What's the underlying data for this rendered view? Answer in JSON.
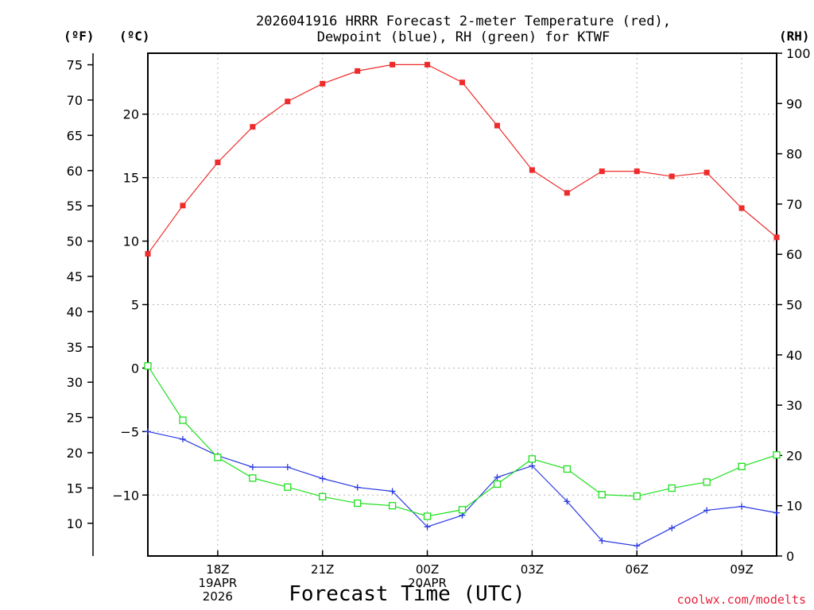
{
  "title": {
    "line1": "2026041916 HRRR Forecast 2-meter Temperature (red),",
    "line2": "Dewpoint (blue), RH (green) for KTWF"
  },
  "axis_units": {
    "fahrenheit": "(ºF)",
    "celsius": "(ºC)",
    "rh": "(RH)"
  },
  "xlabel": "Forecast Time (UTC)",
  "credit": "coolwx.com/modelts",
  "colors": {
    "temperature": "#ee2a2a",
    "dewpoint": "#2a3ae0",
    "rh": "#1ee01e",
    "grid": "#b4b4b4"
  },
  "chart_data": {
    "type": "line",
    "x_hours": [
      16,
      17,
      18,
      19,
      20,
      21,
      22,
      23,
      24,
      25,
      26,
      27,
      28,
      29,
      30,
      31,
      32,
      33,
      34
    ],
    "xlim": [
      16,
      34
    ],
    "x_ticks": [
      {
        "hour": 18,
        "lines": [
          "18Z",
          "19APR",
          "2026"
        ]
      },
      {
        "hour": 21,
        "lines": [
          "21Z"
        ]
      },
      {
        "hour": 24,
        "lines": [
          "00Z",
          "20APR"
        ]
      },
      {
        "hour": 27,
        "lines": [
          "03Z"
        ]
      },
      {
        "hour": 30,
        "lines": [
          "06Z"
        ]
      },
      {
        "hour": 33,
        "lines": [
          "09Z"
        ]
      }
    ],
    "celsius_axis": {
      "lim": [
        -14.8,
        24.8
      ],
      "ticks": [
        -10,
        -5,
        0,
        5,
        10,
        15,
        20
      ]
    },
    "fahrenheit_axis": {
      "ticks": [
        10,
        15,
        20,
        25,
        30,
        35,
        40,
        45,
        50,
        55,
        60,
        65,
        70,
        75
      ]
    },
    "rh_axis": {
      "lim": [
        0,
        100
      ],
      "ticks": [
        0,
        10,
        20,
        30,
        40,
        50,
        60,
        70,
        80,
        90,
        100
      ]
    },
    "series": [
      {
        "name": "Temperature",
        "axis": "celsius",
        "marker": "square-filled",
        "values": [
          9.0,
          12.8,
          16.2,
          19.0,
          21.0,
          22.4,
          23.4,
          23.9,
          23.9,
          22.5,
          19.1,
          15.6,
          13.8,
          15.5,
          15.5,
          15.1,
          15.4,
          12.6,
          10.3
        ]
      },
      {
        "name": "Dewpoint",
        "axis": "celsius",
        "marker": "plus",
        "values": [
          -5.0,
          -5.6,
          -6.9,
          -7.8,
          -7.8,
          -8.7,
          -9.4,
          -9.7,
          -12.5,
          -11.6,
          -8.6,
          -7.7,
          -10.5,
          -13.6,
          -14.0,
          -12.6,
          -11.2,
          -10.9,
          -11.4
        ]
      },
      {
        "name": "RH",
        "axis": "rh",
        "marker": "square-open",
        "values": [
          37.8,
          27.0,
          19.6,
          15.5,
          13.7,
          11.8,
          10.5,
          10.0,
          7.9,
          9.2,
          14.3,
          19.3,
          17.3,
          12.2,
          11.9,
          13.5,
          14.7,
          17.8,
          20.1
        ]
      }
    ]
  }
}
